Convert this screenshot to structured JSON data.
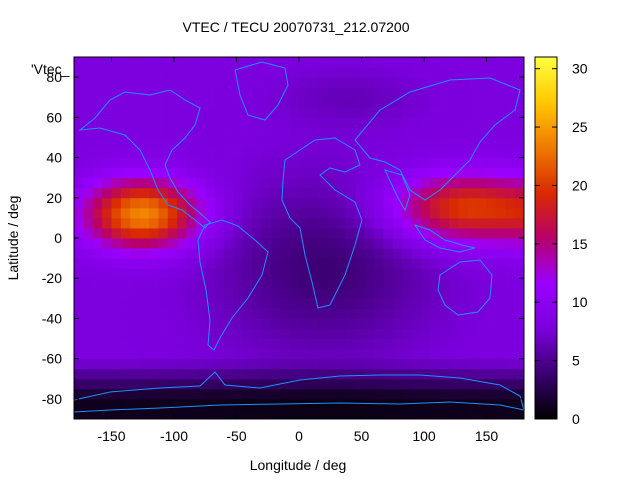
{
  "chart_data": {
    "type": "heatmap",
    "title": "VTEC / TECU 20070731_212.07200",
    "xlabel": "Longitude / deg",
    "ylabel": "Latitude / deg",
    "legend_key": "'Vtec_",
    "xlim": [
      -180,
      180
    ],
    "ylim": [
      -90,
      90
    ],
    "x_ticks": [
      -150,
      -100,
      -50,
      0,
      50,
      100,
      150
    ],
    "y_ticks": [
      -80,
      -60,
      -40,
      -20,
      0,
      20,
      40,
      60,
      80
    ],
    "colorbar": {
      "range": [
        0,
        31
      ],
      "ticks": [
        0,
        5,
        10,
        15,
        20,
        25,
        30
      ],
      "palette": [
        "#000000",
        "#3a0070",
        "#7b00dd",
        "#9a00ff",
        "#b8006a",
        "#d92a00",
        "#ef7a00",
        "#ffc800",
        "#ffff40"
      ]
    },
    "grid": false,
    "coastline_color": "#1e90ff",
    "field_description_values": {
      "background_tecu": 8,
      "equatorial_crest_pacific_peak_lon_lat": [
        -125,
        12
      ],
      "equatorial_crest_pacific_peak_tecu": 24,
      "equatorial_crest_asia_peak_lon_lat": [
        130,
        15
      ],
      "equatorial_crest_asia_peak_tecu": 20,
      "antarctic_minimum_tecu": 1
    }
  }
}
